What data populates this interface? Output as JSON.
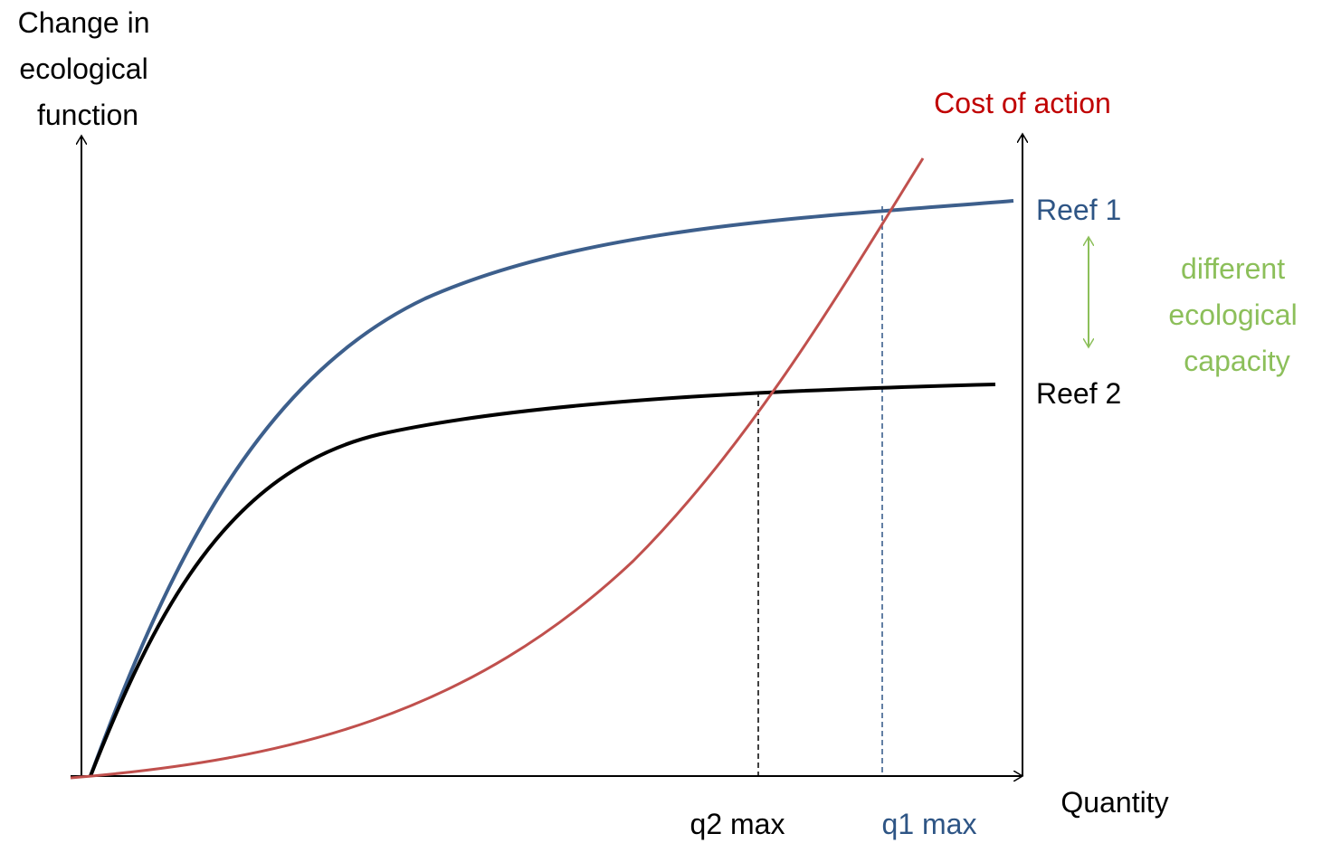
{
  "y_axis_label": [
    "Change in",
    "ecological",
    "function"
  ],
  "x_axis_label": "Quantity",
  "cost_label": "Cost of action",
  "reef1_label": "Reef 1",
  "reef2_label": "Reef 2",
  "capacity_note": [
    "different",
    "ecological",
    "capacity"
  ],
  "q2_label": "q2 max",
  "q1_label": "q1 max"
}
